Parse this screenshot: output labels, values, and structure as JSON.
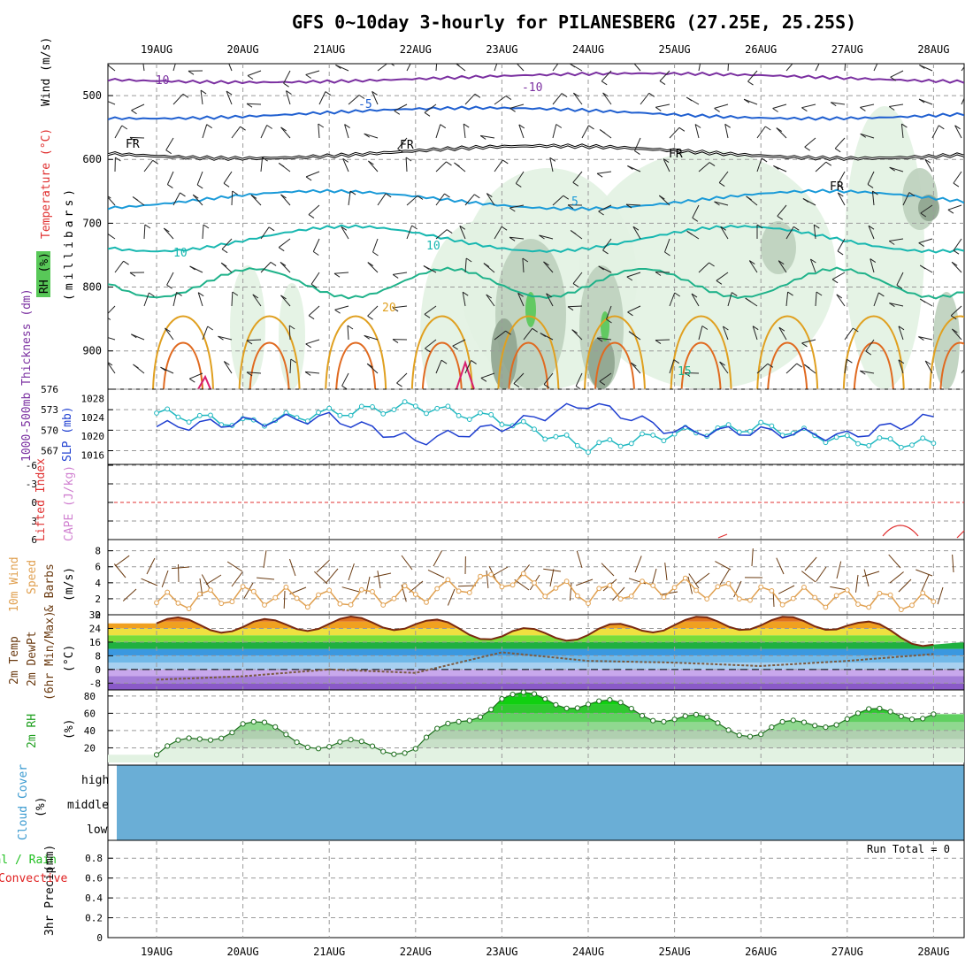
{
  "title": "GFS 0~10day 3-hourly for PILANESBERG (27.25E, 25.25S)",
  "dates": [
    "19AUG",
    "20AUG",
    "21AUG",
    "22AUG",
    "23AUG",
    "24AUG",
    "25AUG",
    "26AUG",
    "27AUG",
    "28AUG"
  ],
  "colors": {
    "temp_cold": "#7a2fa0",
    "temp_5": "#1f5fd0",
    "temp_mid": "#1a9ad8",
    "temp_10": "#17b7b0",
    "temp_15": "#1fb28a",
    "temp_20": "#e0a020",
    "temp_25": "#e06a20",
    "temp_30": "#d81e6e",
    "freezing": "#000000",
    "rh_light": "#e2f2e2",
    "rh_mid": "#bcd0bc",
    "rh_dark": "#8fa48f",
    "rh_moist": "#58c858",
    "thickness": "#20b8c0",
    "slp": "#1f3fd0",
    "lifted": "#e03030",
    "cape": "#d080d0",
    "wind": "#e0a050",
    "barb": "#6a3a10",
    "cloud": "#6aaed6",
    "precip_total": "#20c020",
    "precip_conv": "#e02020"
  },
  "panels": {
    "upper": {
      "y_label": "(millibars)",
      "legend": {
        "wind": "Wind (m/s)",
        "temperature": "Temperature (°C)",
        "rh": "RH (%)"
      },
      "y_ticks": [
        "500",
        "600",
        "700",
        "800",
        "900"
      ],
      "contour_labels": [
        "-10",
        "-10",
        "-5",
        "FR",
        "FR",
        "FR",
        "FR",
        "5",
        "10",
        "10",
        "20",
        "15"
      ]
    },
    "thickness": {
      "label_left": "1000-500mb Thickness (dm)",
      "label_right": "SLP (mb)",
      "y_ticks_left": [
        "576",
        "573",
        "570",
        "567"
      ],
      "y_ticks_right": [
        "1028",
        "1024",
        "1020",
        "1016"
      ]
    },
    "stability": {
      "label_left": "Lifted Index",
      "label_right": "CAPE (J/kg)",
      "y_ticks": [
        "-6",
        "-3",
        "0",
        "3",
        "6"
      ]
    },
    "wind10m": {
      "label_a": "10m Wind",
      "label_b": "Speed",
      "label_c": "& Barbs",
      "unit": "(m/s)",
      "y_ticks": [
        "8",
        "6",
        "4",
        "2",
        "0"
      ]
    },
    "temp2m": {
      "label_a": "2m Temp",
      "label_b": "2m DewPt",
      "label_c": "(6hr Min/Max)",
      "unit": "(°C)",
      "y_ticks": [
        "32",
        "24",
        "16",
        "8",
        "0",
        "-8"
      ]
    },
    "rh2m": {
      "label": "2m RH",
      "unit": "(%)",
      "y_ticks": [
        "80",
        "60",
        "40",
        "20"
      ]
    },
    "cloud": {
      "label": "Cloud Cover",
      "unit": "(%)",
      "levels": [
        "high",
        "middle",
        "low"
      ]
    },
    "precip": {
      "label_a": "Total / Rain",
      "label_b": "Convective",
      "label_c": "3hr Precip",
      "unit": "(mm)",
      "run_total": "Run Total = 0",
      "y_ticks": [
        "0.8",
        "0.6",
        "0.4",
        "0.2",
        "0"
      ]
    }
  },
  "chart_data": [
    {
      "type": "line",
      "title": "1000-500mb Thickness (dm)",
      "x": [
        "19AUG",
        "20AUG",
        "21AUG",
        "22AUG",
        "23AUG",
        "24AUG",
        "25AUG",
        "26AUG",
        "27AUG",
        "28AUG"
      ],
      "series": [
        {
          "name": "1000-500mb Thickness",
          "values": [
            572.5,
            571.0,
            572.5,
            573.5,
            571.5,
            567.5,
            569.5,
            570.5,
            568.5,
            568.0
          ]
        },
        {
          "name": "SLP",
          "values": [
            1022.0,
            1023.0,
            1024.0,
            1019.0,
            1022.0,
            1027.0,
            1021.0,
            1021.0,
            1020.0,
            1024.0
          ]
        }
      ],
      "ylim_left": [
        565,
        576
      ],
      "ylim_right": [
        1014,
        1030
      ]
    },
    {
      "type": "line",
      "title": "10m Wind Speed",
      "x": [
        "19AUG",
        "20AUG",
        "21AUG",
        "22AUG",
        "23AUG",
        "24AUG",
        "25AUG",
        "26AUG",
        "27AUG",
        "28AUG"
      ],
      "series": [
        {
          "name": "10m Wind Speed",
          "values": [
            1.5,
            2.5,
            2.0,
            2.5,
            4.5,
            2.5,
            3.5,
            2.5,
            2.0,
            1.5
          ]
        }
      ],
      "ylim": [
        0,
        9
      ]
    },
    {
      "type": "line",
      "title": "2m RH",
      "x": [
        "19AUG",
        "20AUG",
        "21AUG",
        "22AUG",
        "23AUG",
        "24AUG",
        "25AUG",
        "26AUG",
        "27AUG",
        "28AUG"
      ],
      "series": [
        {
          "name": "2m RH",
          "values": [
            12,
            48,
            22,
            20,
            78,
            72,
            55,
            38,
            56,
            62
          ]
        }
      ],
      "ylim": [
        0,
        85
      ]
    },
    {
      "type": "area",
      "title": "2m Temp",
      "x": [
        "19AUG",
        "20AUG",
        "21AUG",
        "22AUG",
        "23AUG",
        "24AUG",
        "25AUG",
        "26AUG",
        "27AUG",
        "28AUG"
      ],
      "series": [
        {
          "name": "2m Temp",
          "values": [
            27,
            25,
            27,
            27,
            20,
            21,
            27,
            27,
            27,
            16
          ]
        },
        {
          "name": "2m DewPt",
          "values": [
            -6,
            -4,
            0,
            -2,
            10,
            5,
            4,
            2,
            5,
            9
          ]
        }
      ],
      "ylim": [
        -12,
        32
      ]
    }
  ]
}
